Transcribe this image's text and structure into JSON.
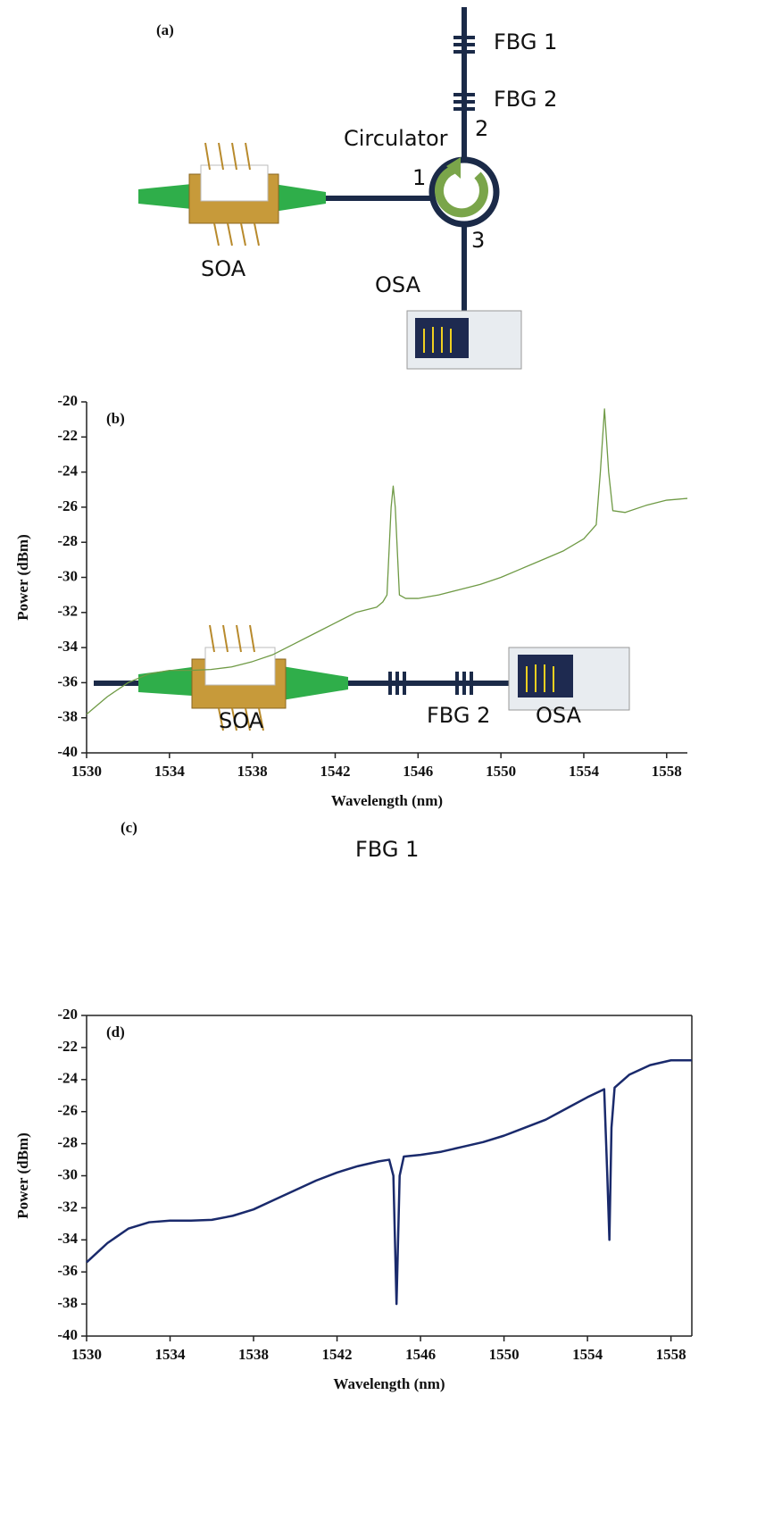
{
  "diagram_a": {
    "label": "(a)",
    "fbg1": "FBG 1",
    "fbg2": "FBG 2",
    "circulator": "Circulator",
    "port1": "1",
    "port2": "2",
    "port3": "3",
    "soa": "SOA",
    "osa": "OSA"
  },
  "chart_data": [
    {
      "type": "line",
      "title": "(b)",
      "x_label": "Wavelength (nm)",
      "y_label": "Power (dBm)",
      "color": "#6f9a45",
      "box": false,
      "xlim": [
        1530,
        1559
      ],
      "xticks": [
        1530,
        1534,
        1538,
        1542,
        1546,
        1550,
        1554,
        1558
      ],
      "ylim": [
        -40,
        -20
      ],
      "yticks": [
        -40,
        -38,
        -36,
        -34,
        -32,
        -30,
        -28,
        -26,
        -24,
        -22,
        -20
      ],
      "x": [
        1530,
        1531,
        1532,
        1533,
        1534,
        1535,
        1536,
        1537,
        1538,
        1539,
        1540,
        1541,
        1542,
        1543,
        1544,
        1544.3,
        1544.5,
        1544.7,
        1544.8,
        1544.9,
        1545.1,
        1545.4,
        1546,
        1547,
        1548,
        1549,
        1550,
        1551,
        1552,
        1553,
        1554,
        1554.6,
        1554.8,
        1555,
        1555.2,
        1555.4,
        1556,
        1557,
        1558,
        1559
      ],
      "values": [
        -37.8,
        -36.8,
        -36,
        -35.5,
        -35.3,
        -35.3,
        -35.25,
        -35.1,
        -34.8,
        -34.4,
        -33.8,
        -33.2,
        -32.6,
        -32,
        -31.7,
        -31.4,
        -31,
        -26,
        -24.8,
        -26,
        -31,
        -31.2,
        -31.2,
        -31,
        -30.7,
        -30.4,
        -30,
        -29.5,
        -29,
        -28.5,
        -27.8,
        -27,
        -24,
        -20.4,
        -24,
        -26.2,
        -26.3,
        -25.9,
        -25.6,
        -25.5
      ]
    },
    {
      "type": "line",
      "title": "(d)",
      "x_label": "Wavelength (nm)",
      "y_label": "Power (dBm)",
      "color": "#1a2a6c",
      "box": true,
      "xlim": [
        1530,
        1559
      ],
      "xticks": [
        1530,
        1534,
        1538,
        1542,
        1546,
        1550,
        1554,
        1558
      ],
      "ylim": [
        -40,
        -20
      ],
      "yticks": [
        -40,
        -38,
        -36,
        -34,
        -32,
        -30,
        -28,
        -26,
        -24,
        -22,
        -20
      ],
      "x": [
        1530,
        1531,
        1532,
        1533,
        1534,
        1535,
        1536,
        1537,
        1538,
        1539,
        1540,
        1541,
        1542,
        1543,
        1544,
        1544.5,
        1544.7,
        1544.85,
        1545,
        1545.2,
        1546,
        1547,
        1548,
        1549,
        1550,
        1551,
        1552,
        1553,
        1554,
        1554.8,
        1554.95,
        1555.05,
        1555.15,
        1555.3,
        1556,
        1557,
        1558,
        1559
      ],
      "values": [
        -35.4,
        -34.2,
        -33.3,
        -32.9,
        -32.8,
        -32.8,
        -32.75,
        -32.5,
        -32.1,
        -31.5,
        -30.9,
        -30.3,
        -29.8,
        -29.4,
        -29.1,
        -29,
        -30,
        -38,
        -30,
        -28.8,
        -28.7,
        -28.5,
        -28.2,
        -27.9,
        -27.5,
        -27,
        -26.5,
        -25.8,
        -25.1,
        -24.6,
        -30,
        -34,
        -27,
        -24.5,
        -23.7,
        -23.1,
        -22.8,
        -22.8
      ]
    }
  ],
  "diagram_c": {
    "label": "(c)",
    "fbg1": "FBG 1",
    "fbg2": "FBG 2",
    "soa": "SOA",
    "osa": "OSA"
  }
}
